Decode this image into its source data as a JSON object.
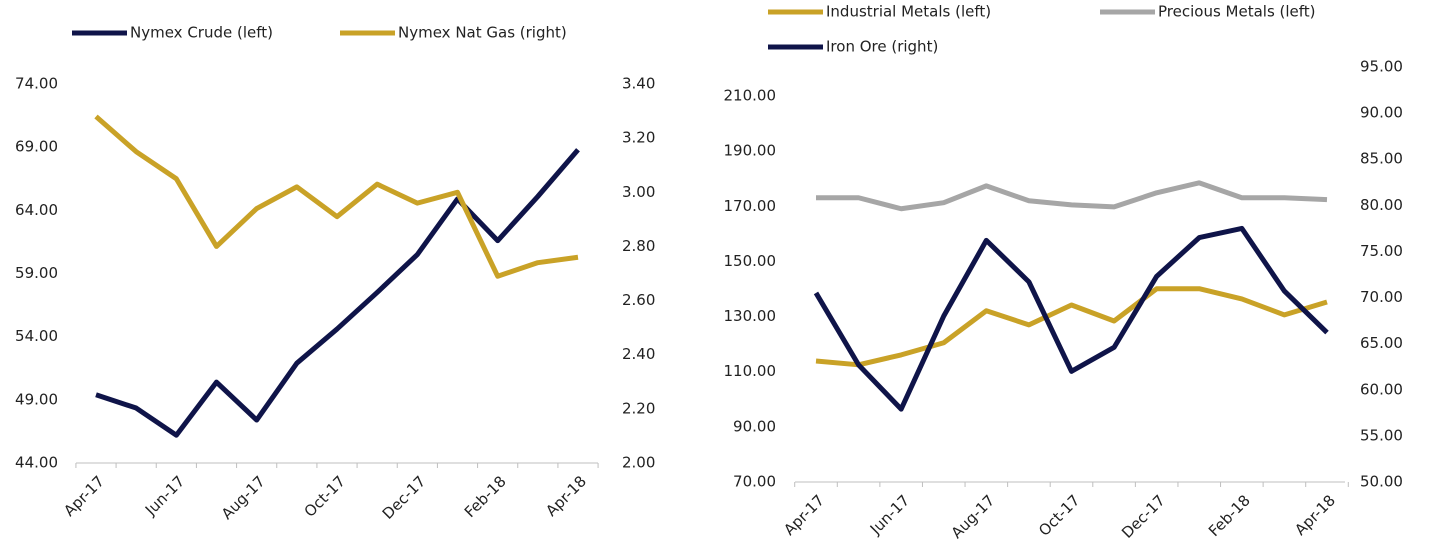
{
  "chart_data": [
    {
      "type": "line",
      "categories": [
        "Apr-17",
        null,
        "Jun-17",
        null,
        "Aug-17",
        null,
        "Oct-17",
        null,
        "Dec-17",
        null,
        "Feb-18",
        null,
        "Apr-18"
      ],
      "series": [
        {
          "name": "Nymex Crude (left)",
          "color": "#0f1449",
          "axis": "y",
          "values": [
            49.4,
            48.35,
            46.2,
            50.4,
            47.4,
            51.9,
            54.6,
            57.5,
            60.5,
            64.9,
            61.6,
            65.1,
            68.8
          ]
        },
        {
          "name": "Nymex Nat Gas (right)",
          "color": "#c9a227",
          "axis": "y2",
          "values": [
            3.28,
            3.15,
            3.05,
            2.8,
            2.94,
            3.02,
            2.91,
            3.03,
            2.96,
            3.0,
            2.69,
            2.74,
            2.76
          ]
        }
      ],
      "ylim": [
        44,
        74
      ],
      "yticks": [
        {
          "value": 44,
          "label": "44.00"
        },
        {
          "value": 49,
          "label": "49.00"
        },
        {
          "value": 54,
          "label": "54.00"
        },
        {
          "value": 59,
          "label": "59.00"
        },
        {
          "value": 64,
          "label": "64.00"
        },
        {
          "value": 69,
          "label": "69.00"
        },
        {
          "value": 74,
          "label": "74.00"
        }
      ],
      "y2lim": [
        2.0,
        3.4
      ],
      "y2ticks": [
        {
          "value": 2.0,
          "label": "2.00"
        },
        {
          "value": 2.2,
          "label": "2.20"
        },
        {
          "value": 2.4,
          "label": "2.40"
        },
        {
          "value": 2.6,
          "label": "2.60"
        },
        {
          "value": 2.8,
          "label": "2.80"
        },
        {
          "value": 3.0,
          "label": "3.00"
        },
        {
          "value": 3.2,
          "label": "3.20"
        },
        {
          "value": 3.4,
          "label": "3.40"
        }
      ],
      "grid": false,
      "legend": "top"
    },
    {
      "type": "line",
      "categories": [
        "Apr-17",
        null,
        "Jun-17",
        null,
        "Aug-17",
        null,
        "Oct-17",
        null,
        "Dec-17",
        null,
        "Feb-18",
        null,
        "Apr-18"
      ],
      "series": [
        {
          "name": "Industrial Metals (left)",
          "color": "#c9a227",
          "axis": "y",
          "values": [
            113.9,
            112.5,
            116.1,
            120.5,
            132.1,
            127.0,
            134.2,
            128.4,
            140.1,
            140.1,
            136.4,
            130.6,
            135.3
          ]
        },
        {
          "name": "Precious Metals (left)",
          "color": "#a6a6a6",
          "axis": "y",
          "values": [
            173.1,
            173.1,
            169.1,
            171.3,
            177.4,
            172.0,
            170.5,
            169.8,
            174.9,
            178.5,
            173.1,
            173.1,
            172.4
          ]
        },
        {
          "name": "Iron Ore (right)",
          "color": "#0f1449",
          "axis": "y2",
          "values": [
            70.5,
            62.7,
            57.9,
            68.0,
            76.2,
            71.7,
            62.0,
            64.6,
            72.3,
            76.5,
            77.5,
            70.7,
            66.2
          ]
        }
      ],
      "ylim": [
        70,
        210
      ],
      "yticks": [
        {
          "value": 70,
          "label": "70.00"
        },
        {
          "value": 90,
          "label": "90.00"
        },
        {
          "value": 110,
          "label": "110.00"
        },
        {
          "value": 130,
          "label": "130.00"
        },
        {
          "value": 150,
          "label": "150.00"
        },
        {
          "value": 170,
          "label": "170.00"
        },
        {
          "value": 190,
          "label": "190.00"
        },
        {
          "value": 210,
          "label": "210.00"
        }
      ],
      "y2lim": [
        50,
        95
      ],
      "y2ticks": [
        {
          "value": 50,
          "label": "50.00"
        },
        {
          "value": 55,
          "label": "55.00"
        },
        {
          "value": 60,
          "label": "60.00"
        },
        {
          "value": 65,
          "label": "65.00"
        },
        {
          "value": 70,
          "label": "70.00"
        },
        {
          "value": 75,
          "label": "75.00"
        },
        {
          "value": 80,
          "label": "80.00"
        },
        {
          "value": 85,
          "label": "85.00"
        },
        {
          "value": 90,
          "label": "90.00"
        },
        {
          "value": 95,
          "label": "95.00"
        }
      ],
      "grid": false,
      "legend": "top"
    }
  ]
}
